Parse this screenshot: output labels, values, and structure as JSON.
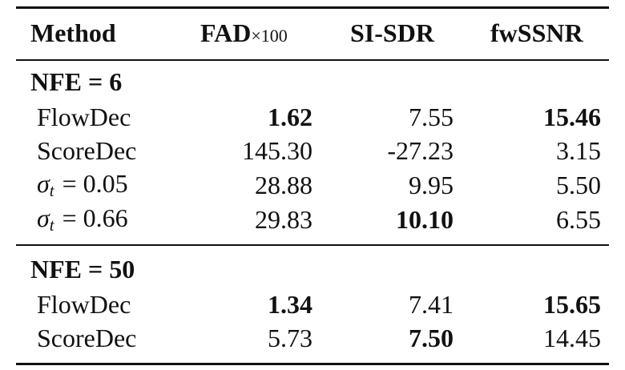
{
  "table": {
    "header": {
      "method": "Method",
      "fad": "FAD",
      "fad_scale": "×100",
      "sisdr": "SI-SDR",
      "fwssnr": "fwSSNR"
    },
    "groups": [
      {
        "label": "NFE = 6",
        "rows": [
          {
            "method": "FlowDec",
            "values": [
              "1.62",
              "7.55",
              "15.46"
            ],
            "bold": [
              true,
              false,
              true
            ]
          },
          {
            "method": "ScoreDec",
            "values": [
              "145.30",
              "-27.23",
              "3.15"
            ],
            "bold": [
              false,
              false,
              false
            ]
          },
          {
            "method_math": {
              "var": "σ",
              "sub": "t",
              "rel": "= 0.05"
            },
            "values": [
              "28.88",
              "9.95",
              "5.50"
            ],
            "bold": [
              false,
              false,
              false
            ]
          },
          {
            "method_math": {
              "var": "σ",
              "sub": "t",
              "rel": "= 0.66"
            },
            "values": [
              "29.83",
              "10.10",
              "6.55"
            ],
            "bold": [
              false,
              true,
              false
            ]
          }
        ]
      },
      {
        "label": "NFE = 50",
        "rows": [
          {
            "method": "FlowDec",
            "values": [
              "1.34",
              "7.41",
              "15.65"
            ],
            "bold": [
              true,
              false,
              true
            ]
          },
          {
            "method": "ScoreDec",
            "values": [
              "5.73",
              "7.50",
              "14.45"
            ],
            "bold": [
              false,
              true,
              false
            ]
          }
        ]
      }
    ]
  }
}
